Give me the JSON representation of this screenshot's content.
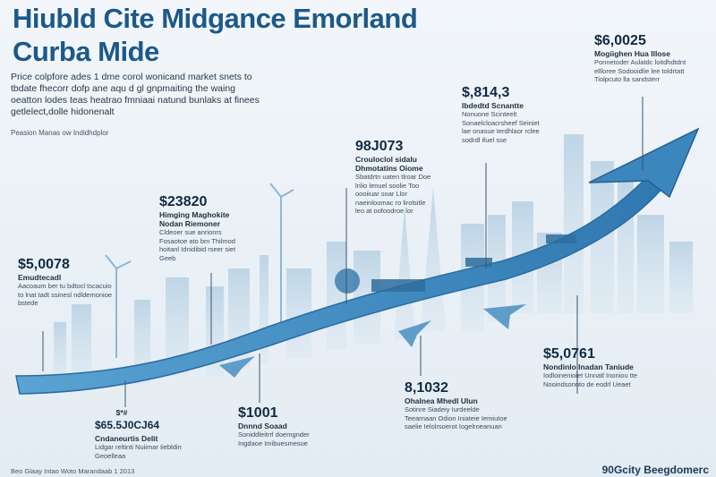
{
  "title_line1": "Hiubld Cite Midgance Emorland",
  "title_line2": "Curba Mide",
  "intro": "Price colpfore ades 1 dme corol wonicand market snets to tbdate fhecorr dofp ane aqu d gl gnpmaiting the waing oeatton lodes teas heatrao fmniaai natund bunlaks at finees getlelect,dolle hidonenalt",
  "source": "Peasion Manas ow Indidhdplor",
  "annotations": [
    {
      "id": "a1",
      "value": "$5,0078",
      "heading": "Emudtecadl",
      "body": "Aacoaum ber tu bdtocl tscacuio to lnat tadt ssinesl ndldemonioe bstede"
    },
    {
      "id": "a2",
      "value": "$23820",
      "heading": "Himging Maghokite Nodan Riemoner",
      "body": "Cldeoer sue anrionrs Fosaotoe ato bm Thilmod hoitanl Idnidibid rseer siet Geeb"
    },
    {
      "id": "a3",
      "value": "98J073",
      "heading": "Crouloclol sidalu Dhmotatins Oiome",
      "body": "Sbatdrtn uaten tlroar Doe lnlio lenuel soolie Too oooiiuar soar Llor naeinloomac ro lirolsitle leo at oofoodroe lor"
    },
    {
      "id": "a4",
      "value": "$,814,3",
      "heading": "Ibdedtd Scnantte",
      "body": "Nonuone Scinteelt Sonaelcloacrsheef Seiniet lae onasue Ierdhlaor rclee sodrdl ifuel sse"
    },
    {
      "id": "a5",
      "value": "$6,0025",
      "heading": "Mogiighen Hua Illose",
      "body": "Ponnetoder Aulatdc loitdhdtdnt ellloree Sodooidlie lee toldrtatt Tiolpcuto lla sandsterr"
    },
    {
      "id": "a6",
      "value": "$5,0761",
      "heading": "Nondinlo Inadan Taniude",
      "body": "Iodloinenioiet Unnatl Inoniou tte Nooindsonnto de eodrl Ueaet"
    },
    {
      "id": "a7",
      "value": "8,1032",
      "heading": "Ohalnea Mhedl Ulun",
      "body": "Sotinre Siadeiy Iurdeelde Teearnaan Odion Iniateie Iemiutoe saelie Ielolrsoerot Iogelroeanuan"
    },
    {
      "id": "a8",
      "value": "$1001",
      "heading": "Dnnnd Soaad",
      "body": "Soniddleitrrl doemgnder Ingdaoe Imibuesmesue"
    },
    {
      "id": "a9",
      "value": "$65.5J0CJ64",
      "heading": "Cndaneurtis Delit",
      "body": "Lidgar reltinti Nuiimar Iiebldin Geoelleaa"
    }
  ],
  "tag_a9": "$*#",
  "footer_left": "Beo Glaay Intao Woto Marandaab 1 2013",
  "footer_right": "90Gcity Beegdomerc",
  "colors": {
    "arrow": "#4a95c8",
    "arrow_dark": "#2f74a8",
    "title": "#1d5987",
    "skyline": "#9fbfd6"
  }
}
